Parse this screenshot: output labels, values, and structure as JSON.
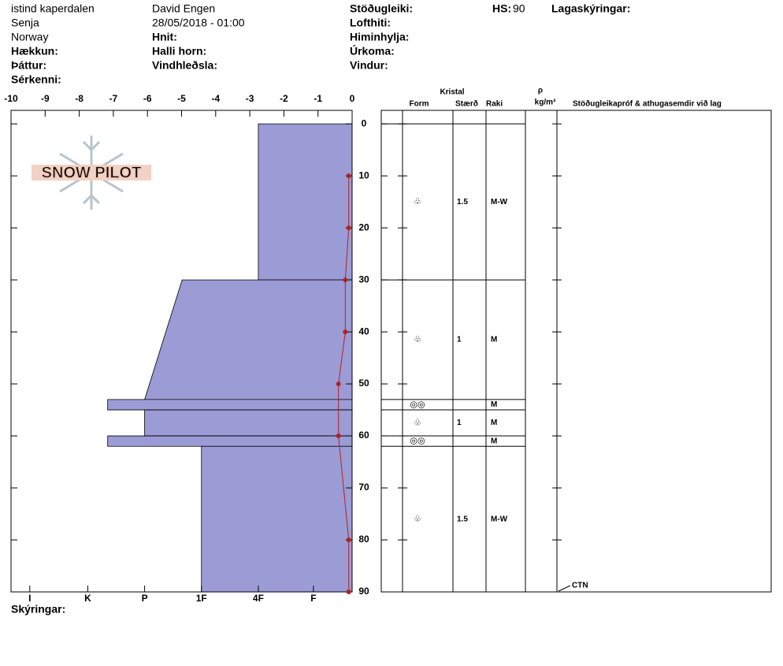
{
  "header": {
    "location": "istind kaperdalen",
    "region": "Senja",
    "country": "Norway",
    "elevation_label": "Hækkun:",
    "aspect_label": "Þáttur:",
    "features_label": "Sérkenni:",
    "observer": "David Engen",
    "datetime": "28/05/2018 - 01:00",
    "coordinates_label": "Hnit:",
    "slope_label": "Halli horn:",
    "wind_loading_label": "Vindhleðsla:",
    "stability_label": "Stöðugleiki:",
    "air_temp_label": "Lofthiti:",
    "sky_label": "Himinhylja:",
    "precip_label": "Úrkoma:",
    "wind_label": "Vindur:",
    "hs_label": "HS:",
    "hs": 90,
    "layer_notes_label": "Lagaskýringar:",
    "footer_label": "Skýringar:",
    "logo": "SNOW PILOT"
  },
  "chart_data": {
    "type": "snow-profile",
    "xlim": [
      -10,
      0
    ],
    "xticks": [
      -10,
      -9,
      -8,
      -7,
      -6,
      -5,
      -4,
      -3,
      -2,
      -1,
      0
    ],
    "ylim": [
      -2.6,
      90
    ],
    "yticks": [
      0,
      10,
      20,
      30,
      40,
      50,
      60,
      70,
      80,
      90
    ],
    "hardness_lim": [
      6,
      0
    ],
    "hardness_ticks": [
      {
        "value": 5.67,
        "label": "I"
      },
      {
        "value": 4.65,
        "label": "K"
      },
      {
        "value": 3.65,
        "label": "P"
      },
      {
        "value": 2.65,
        "label": "1F"
      },
      {
        "value": 1.65,
        "label": "4F"
      },
      {
        "value": 0.68,
        "label": "F"
      }
    ],
    "hardness_color": "#9b9bd6",
    "layers": [
      {
        "top": 0,
        "bottom": 30,
        "hardness_top": 1.65,
        "hardness_bottom": 1.65,
        "form": "♧",
        "size": 1.5,
        "moisture": "M-W"
      },
      {
        "top": 30,
        "bottom": 53,
        "hardness_top": 2.99,
        "hardness_bottom": 3.65,
        "form": "♧",
        "size": 1,
        "moisture": "M"
      },
      {
        "top": 53,
        "bottom": 55,
        "hardness_top": 4.3,
        "hardness_bottom": 4.3,
        "form": "◎◎",
        "moisture": "M"
      },
      {
        "top": 55,
        "bottom": 60,
        "hardness_top": 3.65,
        "hardness_bottom": 3.65,
        "form": "♧",
        "size": 1,
        "moisture": "M"
      },
      {
        "top": 60,
        "bottom": 62,
        "hardness_top": 4.3,
        "hardness_bottom": 4.3,
        "form": "◎◎",
        "moisture": "M"
      },
      {
        "top": 62,
        "bottom": 90,
        "hardness_top": 2.65,
        "hardness_bottom": 2.65,
        "form": "♧",
        "size": 1.5,
        "moisture": "M-W"
      }
    ],
    "temperature": {
      "color": "#b22222",
      "depth": [
        10,
        20,
        30,
        40,
        50,
        60,
        80,
        90
      ],
      "values": [
        -0.1,
        -0.1,
        -0.2,
        -0.2,
        -0.4,
        -0.4,
        -0.1,
        -0.1
      ]
    },
    "table_headers": {
      "crystal": "Kristal",
      "form": "Form",
      "size": "Stærð",
      "moisture": "Raki",
      "density_symbol": "ρ",
      "density_unit": "kg/m³",
      "tests": "Stöðugleikapróf & athugasemdir við lag"
    },
    "test_note": {
      "label": "CTN",
      "depth": 90
    }
  }
}
